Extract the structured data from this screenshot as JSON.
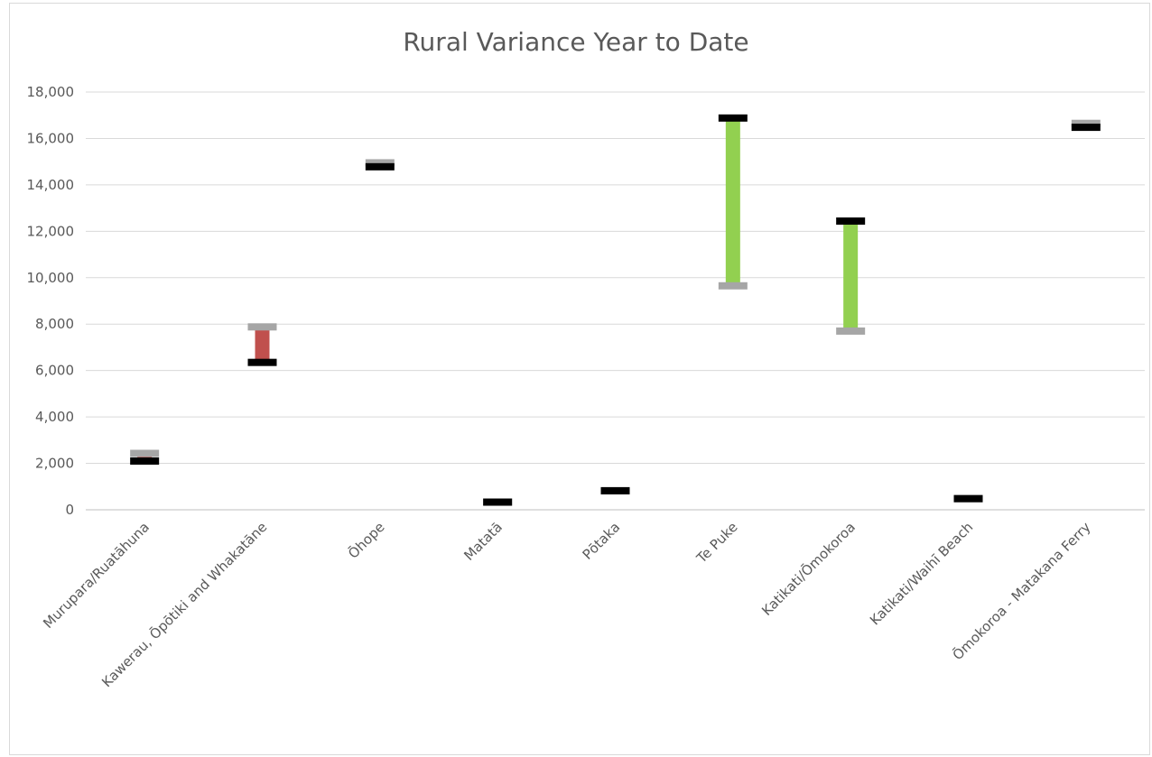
{
  "chart_data": {
    "type": "floating-bar",
    "title": "Rural Variance Year to Date",
    "categories": [
      "Murupara/Ruatāhuna",
      "Kawerau, Ōpōtiki and Whakatāne",
      "Ōhope",
      "Matatā",
      "Pōtaka",
      "Te Puke",
      "Katikati/Ōmokoroa",
      "Katikati/Waihī Beach",
      "Ōmokoroa - Matakana Ferry"
    ],
    "series": [
      {
        "values": [
          2100,
          6350,
          14780,
          330,
          820,
          16880,
          12440,
          480,
          16480
        ]
      },
      {
        "values": [
          2430,
          7880,
          14950,
          330,
          820,
          9650,
          7700,
          480,
          16650
        ]
      }
    ],
    "yticks": [
      "0",
      "2,000",
      "4,000",
      "6,000",
      "8,000",
      "10,000",
      "12,000",
      "14,000",
      "16,000",
      "18,000"
    ],
    "ylim": [
      0,
      18000
    ],
    "grid": true,
    "legend": "none",
    "colors": {
      "increase": "#92d050",
      "decrease": "#c0504d",
      "black_marker": "#000000",
      "grey_marker": "#a6a6a6",
      "gridline": "#d9d9d9",
      "axis": "#bfbfbf"
    }
  }
}
